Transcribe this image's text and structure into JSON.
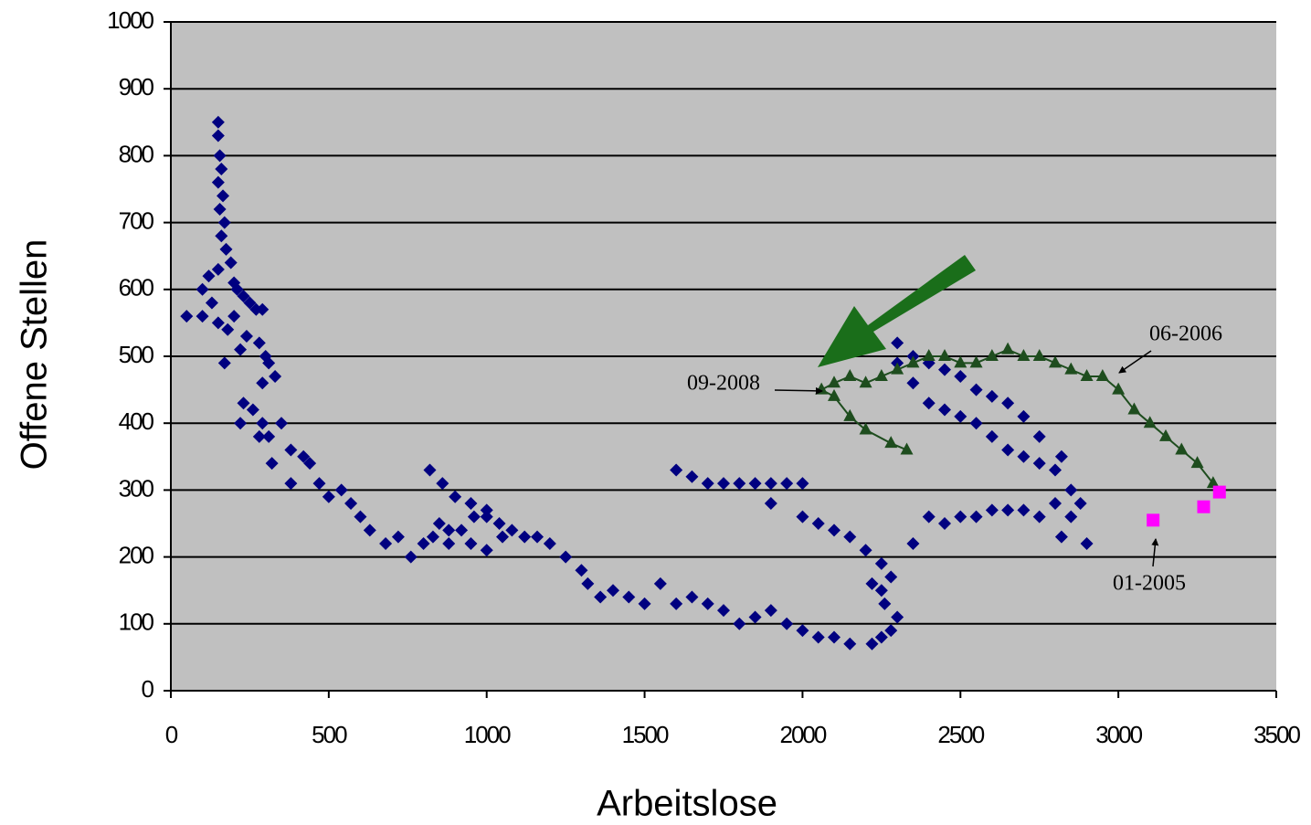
{
  "chart_data": {
    "type": "scatter",
    "xlabel": "Arbeitslose",
    "ylabel": "Offene Stellen",
    "xlim": [
      0,
      3500
    ],
    "xticks": [
      0,
      500,
      1000,
      1500,
      2000,
      2500,
      3000,
      3500
    ],
    "ylim": [
      0,
      1000
    ],
    "yticks": [
      0,
      100,
      200,
      300,
      400,
      500,
      600,
      700,
      800,
      900,
      1000
    ],
    "grid": true,
    "series": [
      {
        "color": "#000080",
        "marker": "diamond",
        "line": false,
        "x": [
          150,
          150,
          155,
          160,
          150,
          165,
          155,
          170,
          160,
          175,
          190,
          150,
          120,
          200,
          100,
          210,
          230,
          130,
          250,
          270,
          100,
          200,
          290,
          150,
          50,
          180,
          240,
          280,
          220,
          300,
          310,
          170,
          330,
          290,
          230,
          260,
          220,
          290,
          310,
          350,
          380,
          420,
          280,
          320,
          380,
          440,
          470,
          500,
          540,
          570,
          600,
          630,
          680,
          720,
          760,
          800,
          830,
          850,
          880,
          920,
          960,
          1000,
          1040,
          1080,
          1120,
          1160,
          820,
          860,
          900,
          950,
          1000,
          1050,
          1000,
          950,
          880,
          1200,
          1250,
          1300,
          1320,
          1360,
          1400,
          1450,
          1500,
          1550,
          1600,
          1650,
          1700,
          1750,
          1800,
          1850,
          1900,
          1950,
          2000,
          2050,
          2100,
          2150,
          1600,
          1650,
          1700,
          1750,
          1800,
          1850,
          1900,
          1950,
          2000,
          1900,
          2000,
          2050,
          2100,
          2150,
          2200,
          2250,
          2280,
          2250,
          2220,
          2260,
          2300,
          2280,
          2250,
          2220,
          2350,
          2400,
          2450,
          2500,
          2550,
          2600,
          2650,
          2700,
          2750,
          2800,
          2850,
          2820,
          2900,
          2800,
          2750,
          2700,
          2650,
          2600,
          2550,
          2500,
          2450,
          2400,
          2350,
          2300,
          2300,
          2350,
          2400,
          2450,
          2500,
          2550,
          2600,
          2650,
          2700,
          2750,
          2850,
          2880,
          2820
        ],
        "y": [
          850,
          830,
          800,
          780,
          760,
          740,
          720,
          700,
          680,
          660,
          640,
          630,
          620,
          610,
          600,
          600,
          590,
          580,
          580,
          570,
          560,
          560,
          570,
          550,
          560,
          540,
          530,
          520,
          510,
          500,
          490,
          490,
          470,
          460,
          430,
          420,
          400,
          400,
          380,
          400,
          360,
          350,
          380,
          340,
          310,
          340,
          310,
          290,
          300,
          280,
          260,
          240,
          220,
          230,
          200,
          220,
          230,
          250,
          240,
          240,
          260,
          270,
          250,
          240,
          230,
          230,
          330,
          310,
          290,
          280,
          260,
          230,
          210,
          220,
          220,
          220,
          200,
          180,
          160,
          140,
          150,
          140,
          130,
          160,
          130,
          140,
          130,
          120,
          100,
          110,
          120,
          100,
          90,
          80,
          80,
          70,
          330,
          320,
          310,
          310,
          310,
          310,
          310,
          310,
          310,
          280,
          260,
          250,
          240,
          230,
          210,
          190,
          170,
          150,
          160,
          130,
          110,
          90,
          80,
          70,
          220,
          260,
          250,
          260,
          260,
          270,
          270,
          270,
          260,
          280,
          260,
          230,
          220,
          330,
          380,
          410,
          430,
          440,
          450,
          470,
          480,
          490,
          500,
          520,
          490,
          460,
          430,
          420,
          410,
          400,
          380,
          360,
          350,
          340,
          300,
          280,
          350
        ]
      },
      {
        "color": "#1e4d1e",
        "marker": "triangle",
        "line": true,
        "x": [
          2330,
          2280,
          2200,
          2150,
          2100,
          2060,
          2100,
          2150,
          2200,
          2250,
          2300,
          2350,
          2400,
          2450,
          2500,
          2550,
          2600,
          2650,
          2700,
          2750,
          2800,
          2850,
          2900,
          2950,
          3000,
          3050,
          3100,
          3150,
          3200,
          3250,
          3300
        ],
        "y": [
          360,
          370,
          390,
          410,
          440,
          450,
          460,
          470,
          460,
          470,
          480,
          490,
          500,
          500,
          490,
          490,
          500,
          510,
          500,
          500,
          490,
          480,
          470,
          470,
          450,
          420,
          400,
          380,
          360,
          340,
          310
        ]
      },
      {
        "color": "#ff00ff",
        "marker": "square",
        "line": false,
        "x": [
          3110,
          3270,
          3320
        ],
        "y": [
          255,
          275,
          297
        ]
      }
    ],
    "annotations": [
      {
        "text": "09-2008"
      },
      {
        "text": "06-2006"
      },
      {
        "text": "01-2005"
      }
    ],
    "highlight_arrow_color": "#1a6e1a"
  }
}
